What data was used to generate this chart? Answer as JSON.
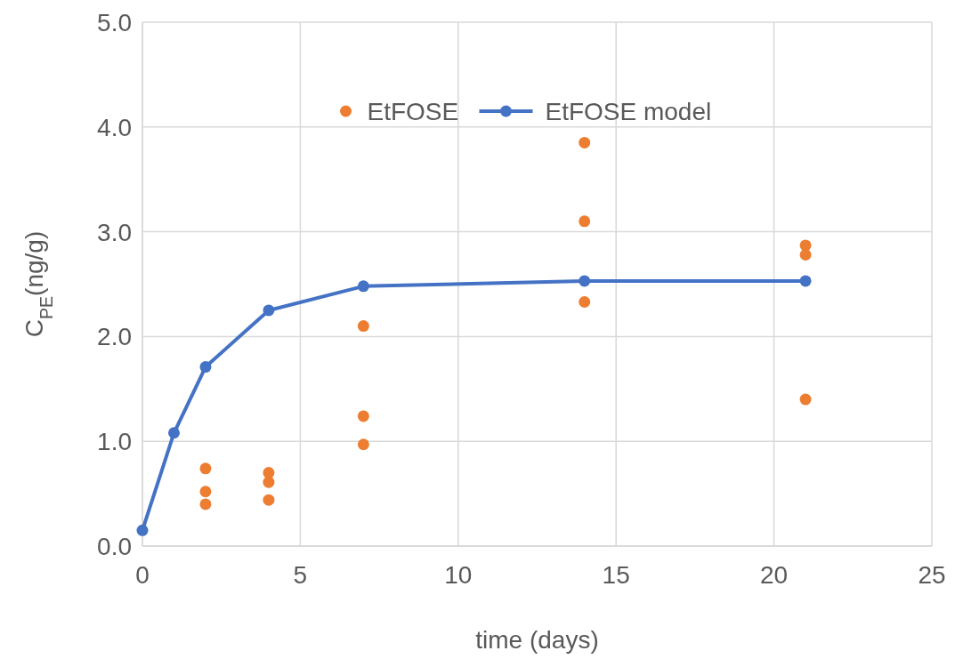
{
  "chart_data": {
    "type": "scatter",
    "xlabel": "time (days)",
    "ylabel": "C$_{PE}$(ng/g)",
    "xlim": [
      0,
      25
    ],
    "xticks": [
      0,
      5,
      10,
      15,
      20,
      25
    ],
    "ylim": [
      0,
      5
    ],
    "yticks": [
      {
        "value": 0,
        "label": "0.0"
      },
      {
        "value": 1,
        "label": "1.0"
      },
      {
        "value": 2,
        "label": "2.0"
      },
      {
        "value": 3,
        "label": "3.0"
      },
      {
        "value": 4,
        "label": "4.0"
      },
      {
        "value": 5,
        "label": "5.0"
      }
    ],
    "grid": true,
    "legend": "top",
    "marker": "circle",
    "series": [
      {
        "name": "EtFOSE",
        "color": "#ed7d31",
        "x": [
          2,
          2,
          2,
          4,
          4,
          4,
          7,
          7,
          7,
          14,
          14,
          14,
          21,
          21,
          21
        ],
        "values": [
          0.74,
          0.52,
          0.4,
          0.7,
          0.61,
          0.44,
          2.1,
          1.24,
          0.97,
          3.85,
          3.1,
          2.33,
          2.87,
          2.78,
          1.4
        ]
      },
      {
        "name": "EtFOSE model",
        "type": "line",
        "color": "#4472c4",
        "line_style": "solid",
        "x": [
          0,
          1,
          2,
          4,
          7,
          14,
          21
        ],
        "values": [
          0.15,
          1.08,
          1.71,
          2.25,
          2.48,
          2.53,
          2.53
        ]
      }
    ]
  }
}
